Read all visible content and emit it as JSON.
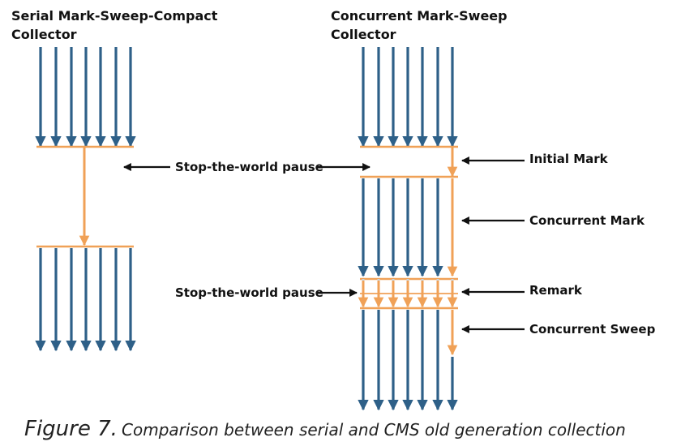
{
  "serial": {
    "title_line1": "Serial Mark-Sweep-Compact",
    "title_line2": "Collector"
  },
  "cms": {
    "title_line1": "Concurrent Mark-Sweep",
    "title_line2": "Collector"
  },
  "labels": {
    "stw_pause_top": "Stop-the-world pause",
    "stw_pause_bottom": "Stop-the-world pause",
    "initial_mark": "Initial Mark",
    "concurrent_mark": "Concurrent Mark",
    "remark": "Remark",
    "concurrent_sweep": "Concurrent Sweep"
  },
  "caption": {
    "figure": "Figure 7.",
    "text": "Comparison between serial and CMS old generation collection"
  },
  "colors": {
    "thread": "#2e6088",
    "gc": "#f0a157",
    "pointer": "#111111"
  }
}
